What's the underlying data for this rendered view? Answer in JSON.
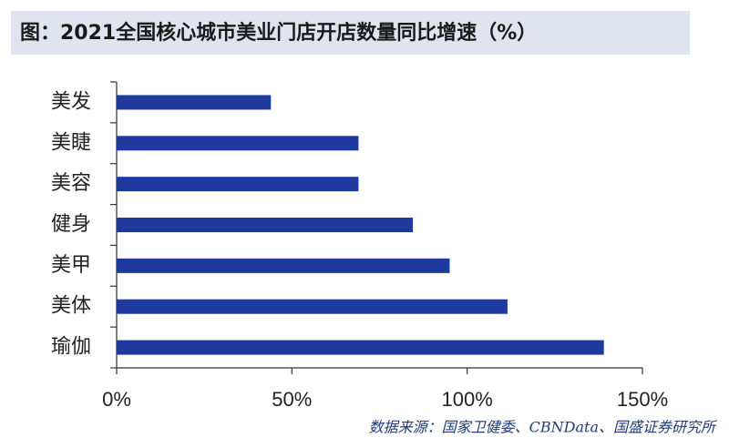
{
  "chart_data": {
    "type": "hbar",
    "title": "图：2021全国核心城市美业门店开店数量同比增速（%）",
    "categories": [
      "美发",
      "美睫",
      "美容",
      "健身",
      "美甲",
      "美体",
      "瑜伽"
    ],
    "values": [
      44,
      69,
      69,
      84.5,
      95,
      111.5,
      139
    ],
    "color": "#1f3a9e",
    "xlim": [
      0,
      150
    ],
    "xticks": [
      {
        "value": 0,
        "label": "0%"
      },
      {
        "value": 50,
        "label": "50%"
      },
      {
        "value": 100,
        "label": "100%"
      },
      {
        "value": 150,
        "label": "150%"
      }
    ],
    "source": "数据来源：国家卫健委、CBNData、国盛证券研究所"
  }
}
